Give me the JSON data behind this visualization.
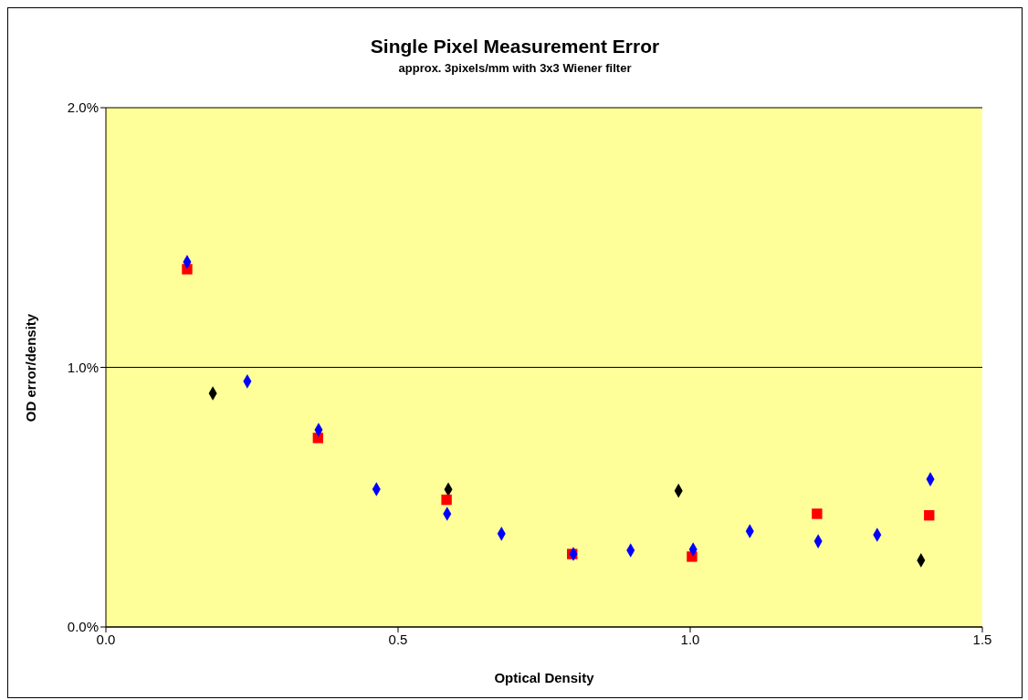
{
  "chart_data": {
    "type": "scatter",
    "title": "Single Pixel Measurement Error",
    "subtitle": "approx. 3pixels/mm with 3x3 Wiener filter",
    "xlabel": "Optical Density",
    "ylabel": "OD error/density",
    "xlim": [
      0,
      1.5
    ],
    "xticks": [
      {
        "value": 0,
        "label": "0.0"
      },
      {
        "value": 0.5,
        "label": "0.5"
      },
      {
        "value": 1,
        "label": "1.0"
      },
      {
        "value": 1.5,
        "label": "1.5"
      }
    ],
    "ylim": [
      0,
      2
    ],
    "yticks": [
      {
        "value": 0,
        "label": "0.0%"
      },
      {
        "value": 1,
        "label": "1.0%"
      },
      {
        "value": 2,
        "label": "2.0%"
      }
    ],
    "grid": "y",
    "legend": false,
    "series": [
      {
        "color": "#000000",
        "marker": "diamond",
        "x": [
          0.183,
          0.586,
          0.98,
          1.395
        ],
        "values": [
          0.9,
          0.53,
          0.525,
          0.257
        ]
      },
      {
        "color": "#ff0000",
        "marker": "square",
        "x": [
          0.139,
          0.363,
          0.583,
          0.798,
          1.003,
          1.217,
          1.409
        ],
        "values": [
          1.378,
          0.728,
          0.49,
          0.281,
          0.271,
          0.436,
          0.43
        ]
      },
      {
        "color": "#0000ff",
        "marker": "diamond",
        "x": [
          0.139,
          0.242,
          0.364,
          0.463,
          0.584,
          0.677,
          0.8,
          0.898,
          1.005,
          1.102,
          1.219,
          1.32,
          1.411
        ],
        "values": [
          1.406,
          0.946,
          0.759,
          0.531,
          0.436,
          0.359,
          0.281,
          0.295,
          0.299,
          0.369,
          0.33,
          0.355,
          0.569
        ]
      }
    ]
  }
}
